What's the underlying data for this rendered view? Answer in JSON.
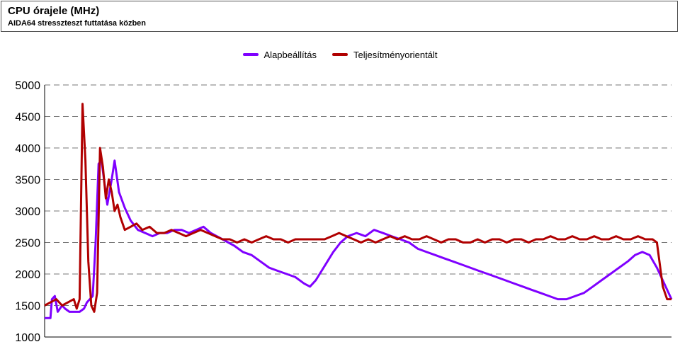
{
  "header": {
    "title": "CPU órajele (MHz)",
    "subtitle": "AIDA64 stresszteszt futtatása közben"
  },
  "chart_data": {
    "type": "line",
    "title": "CPU órajele (MHz)",
    "subtitle": "AIDA64 stresszteszt futtatása közben",
    "ylim": [
      1000,
      5000
    ],
    "yticks": [
      1000,
      1500,
      2000,
      2500,
      3000,
      3500,
      4000,
      4500,
      5000
    ],
    "grid": "horizontal dashed",
    "legend_position": "top-center",
    "x_count": 430,
    "series": [
      {
        "name": "Alapbeállítás",
        "color": "#7f00ff",
        "points": [
          [
            0,
            1300
          ],
          [
            4,
            1300
          ],
          [
            5,
            1600
          ],
          [
            7,
            1650
          ],
          [
            9,
            1400
          ],
          [
            12,
            1500
          ],
          [
            14,
            1450
          ],
          [
            17,
            1400
          ],
          [
            21,
            1400
          ],
          [
            24,
            1400
          ],
          [
            27,
            1450
          ],
          [
            29,
            1550
          ],
          [
            31,
            1600
          ],
          [
            33,
            1650
          ],
          [
            35,
            2500
          ],
          [
            37,
            3750
          ],
          [
            39,
            3800
          ],
          [
            41,
            3450
          ],
          [
            43,
            3100
          ],
          [
            46,
            3500
          ],
          [
            48,
            3800
          ],
          [
            51,
            3300
          ],
          [
            55,
            3050
          ],
          [
            59,
            2850
          ],
          [
            64,
            2700
          ],
          [
            69,
            2650
          ],
          [
            74,
            2600
          ],
          [
            79,
            2650
          ],
          [
            84,
            2650
          ],
          [
            89,
            2700
          ],
          [
            94,
            2700
          ],
          [
            99,
            2650
          ],
          [
            104,
            2700
          ],
          [
            109,
            2750
          ],
          [
            114,
            2650
          ],
          [
            118,
            2600
          ],
          [
            122,
            2550
          ],
          [
            126,
            2500
          ],
          [
            130,
            2450
          ],
          [
            136,
            2350
          ],
          [
            142,
            2300
          ],
          [
            148,
            2200
          ],
          [
            154,
            2100
          ],
          [
            160,
            2050
          ],
          [
            166,
            2000
          ],
          [
            172,
            1950
          ],
          [
            178,
            1850
          ],
          [
            182,
            1800
          ],
          [
            186,
            1900
          ],
          [
            190,
            2050
          ],
          [
            194,
            2200
          ],
          [
            198,
            2350
          ],
          [
            203,
            2500
          ],
          [
            208,
            2600
          ],
          [
            214,
            2650
          ],
          [
            220,
            2600
          ],
          [
            226,
            2700
          ],
          [
            232,
            2650
          ],
          [
            238,
            2600
          ],
          [
            244,
            2550
          ],
          [
            250,
            2500
          ],
          [
            256,
            2400
          ],
          [
            262,
            2350
          ],
          [
            268,
            2300
          ],
          [
            274,
            2250
          ],
          [
            280,
            2200
          ],
          [
            286,
            2150
          ],
          [
            292,
            2100
          ],
          [
            298,
            2050
          ],
          [
            304,
            2000
          ],
          [
            310,
            1950
          ],
          [
            316,
            1900
          ],
          [
            322,
            1850
          ],
          [
            328,
            1800
          ],
          [
            334,
            1750
          ],
          [
            340,
            1700
          ],
          [
            346,
            1650
          ],
          [
            352,
            1600
          ],
          [
            358,
            1600
          ],
          [
            364,
            1650
          ],
          [
            370,
            1700
          ],
          [
            376,
            1800
          ],
          [
            382,
            1900
          ],
          [
            388,
            2000
          ],
          [
            394,
            2100
          ],
          [
            400,
            2200
          ],
          [
            405,
            2300
          ],
          [
            410,
            2350
          ],
          [
            415,
            2300
          ],
          [
            420,
            2100
          ],
          [
            425,
            1850
          ],
          [
            430,
            1600
          ]
        ]
      },
      {
        "name": "Teljesítményorientált",
        "color": "#b00000",
        "points": [
          [
            0,
            1500
          ],
          [
            4,
            1550
          ],
          [
            8,
            1600
          ],
          [
            12,
            1500
          ],
          [
            16,
            1550
          ],
          [
            20,
            1600
          ],
          [
            22,
            1450
          ],
          [
            24,
            1600
          ],
          [
            26,
            4700
          ],
          [
            28,
            3800
          ],
          [
            30,
            2200
          ],
          [
            32,
            1500
          ],
          [
            34,
            1400
          ],
          [
            36,
            1700
          ],
          [
            38,
            4000
          ],
          [
            40,
            3700
          ],
          [
            42,
            3200
          ],
          [
            44,
            3500
          ],
          [
            46,
            3300
          ],
          [
            48,
            3000
          ],
          [
            50,
            3100
          ],
          [
            52,
            2900
          ],
          [
            55,
            2700
          ],
          [
            59,
            2750
          ],
          [
            63,
            2800
          ],
          [
            67,
            2700
          ],
          [
            72,
            2750
          ],
          [
            77,
            2650
          ],
          [
            82,
            2650
          ],
          [
            87,
            2700
          ],
          [
            92,
            2650
          ],
          [
            97,
            2600
          ],
          [
            102,
            2650
          ],
          [
            107,
            2700
          ],
          [
            112,
            2650
          ],
          [
            117,
            2600
          ],
          [
            122,
            2550
          ],
          [
            127,
            2550
          ],
          [
            132,
            2500
          ],
          [
            137,
            2550
          ],
          [
            142,
            2500
          ],
          [
            147,
            2550
          ],
          [
            152,
            2600
          ],
          [
            157,
            2550
          ],
          [
            162,
            2550
          ],
          [
            167,
            2500
          ],
          [
            172,
            2550
          ],
          [
            177,
            2550
          ],
          [
            182,
            2550
          ],
          [
            187,
            2550
          ],
          [
            192,
            2550
          ],
          [
            197,
            2600
          ],
          [
            202,
            2650
          ],
          [
            207,
            2600
          ],
          [
            212,
            2550
          ],
          [
            217,
            2500
          ],
          [
            222,
            2550
          ],
          [
            227,
            2500
          ],
          [
            232,
            2550
          ],
          [
            237,
            2600
          ],
          [
            242,
            2550
          ],
          [
            247,
            2600
          ],
          [
            252,
            2550
          ],
          [
            257,
            2550
          ],
          [
            262,
            2600
          ],
          [
            267,
            2550
          ],
          [
            272,
            2500
          ],
          [
            277,
            2550
          ],
          [
            282,
            2550
          ],
          [
            287,
            2500
          ],
          [
            292,
            2500
          ],
          [
            297,
            2550
          ],
          [
            302,
            2500
          ],
          [
            307,
            2550
          ],
          [
            312,
            2550
          ],
          [
            317,
            2500
          ],
          [
            322,
            2550
          ],
          [
            327,
            2550
          ],
          [
            332,
            2500
          ],
          [
            337,
            2550
          ],
          [
            342,
            2550
          ],
          [
            347,
            2600
          ],
          [
            352,
            2550
          ],
          [
            357,
            2550
          ],
          [
            362,
            2600
          ],
          [
            367,
            2550
          ],
          [
            372,
            2550
          ],
          [
            377,
            2600
          ],
          [
            382,
            2550
          ],
          [
            387,
            2550
          ],
          [
            392,
            2600
          ],
          [
            397,
            2550
          ],
          [
            402,
            2550
          ],
          [
            407,
            2600
          ],
          [
            412,
            2550
          ],
          [
            417,
            2550
          ],
          [
            420,
            2500
          ],
          [
            424,
            1800
          ],
          [
            427,
            1600
          ],
          [
            430,
            1600
          ]
        ]
      }
    ]
  }
}
